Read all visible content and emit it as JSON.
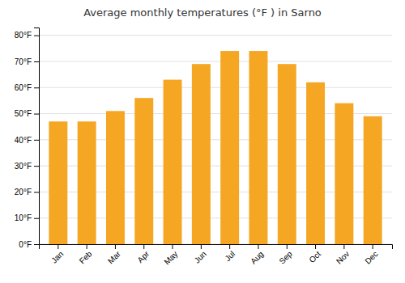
{
  "chart_data": {
    "type": "bar",
    "title": "Average monthly temperatures (°F ) in Sarno",
    "categories": [
      "Jan",
      "Feb",
      "Mar",
      "Apr",
      "May",
      "Jun",
      "Jul",
      "Aug",
      "Sep",
      "Oct",
      "Nov",
      "Dec"
    ],
    "values": [
      47,
      47,
      51,
      56,
      63,
      69,
      74,
      74,
      69,
      62,
      54,
      49
    ],
    "color": "#F5A623",
    "ylim": [
      0,
      83
    ],
    "yticks": [
      {
        "value": 0,
        "label": "0°F"
      },
      {
        "value": 10,
        "label": "10°F"
      },
      {
        "value": 20,
        "label": "20°F"
      },
      {
        "value": 30,
        "label": "30°F"
      },
      {
        "value": 40,
        "label": "40°F"
      },
      {
        "value": 50,
        "label": "50°F"
      },
      {
        "value": 60,
        "label": "60°F"
      },
      {
        "value": 70,
        "label": "70°F"
      },
      {
        "value": 80,
        "label": "80°F"
      }
    ],
    "grid": true
  }
}
